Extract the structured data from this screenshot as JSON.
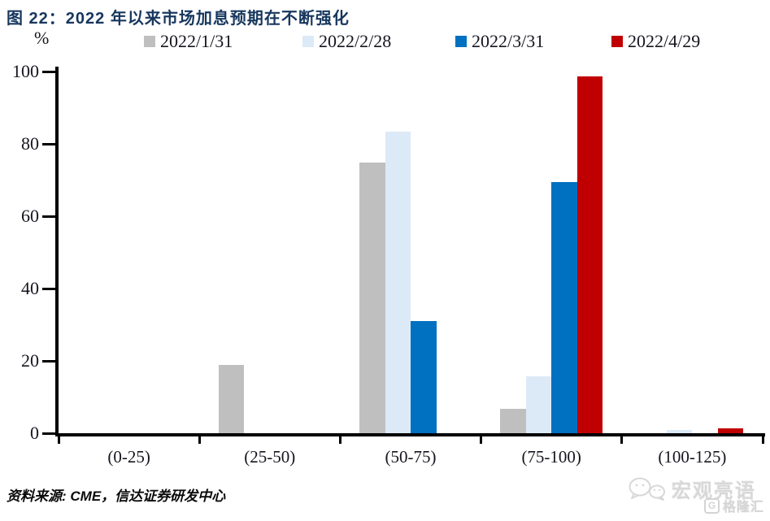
{
  "chart_data": {
    "type": "bar",
    "title": "图 22：2022 年以来市场加息预期在不断强化",
    "ylabel": "%",
    "categories": [
      "(0-25)",
      "(25-50)",
      "(50-75)",
      "(75-100)",
      "(100-125)"
    ],
    "series": [
      {
        "name": "2022/1/31",
        "color": "#BFBFBF",
        "values": [
          0,
          18.8,
          74.8,
          6.7,
          0
        ]
      },
      {
        "name": "2022/2/28",
        "color": "#DCE9F6",
        "values": [
          0,
          0,
          83.4,
          15.7,
          0.9
        ]
      },
      {
        "name": "2022/3/31",
        "color": "#0070C0",
        "values": [
          0,
          0,
          30.9,
          69.4,
          0
        ]
      },
      {
        "name": "2022/4/29",
        "color": "#C00000",
        "values": [
          0,
          0,
          0,
          98.6,
          1.4
        ]
      }
    ],
    "ylim": [
      0,
      100
    ],
    "yticks": [
      0,
      20,
      40,
      60,
      80,
      100
    ],
    "legend_position": "top",
    "grid": false,
    "axis_color": "#000000"
  },
  "source_note": "资料来源: CME，信达证券研发中心",
  "watermark": {
    "brand": "宏观亮语",
    "publisher": "格隆汇",
    "brand_icon": "chat-bubbles-icon",
    "publisher_icon": "g-square-icon"
  }
}
